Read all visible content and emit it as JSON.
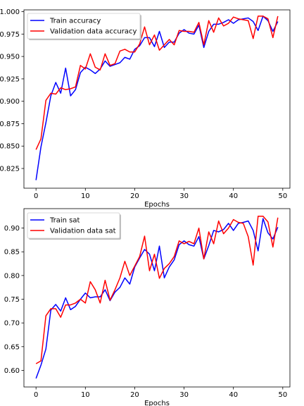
{
  "chart_data": [
    {
      "type": "line",
      "title": "",
      "xlabel": "Epochs",
      "ylabel": "",
      "xlim": [
        -2.45,
        51.45
      ],
      "ylim": [
        0.803,
        1.002
      ],
      "xticks": [
        0,
        10,
        20,
        30,
        40,
        50
      ],
      "yticks": [
        0.825,
        0.85,
        0.875,
        0.9,
        0.925,
        0.95,
        0.975,
        1.0
      ],
      "ytick_labels": [
        "0.825",
        "0.850",
        "0.875",
        "0.900",
        "0.925",
        "0.950",
        "0.975",
        "1.000"
      ],
      "grid": false,
      "legend_position": "upper-left",
      "x": [
        0,
        1,
        2,
        3,
        4,
        5,
        6,
        7,
        8,
        9,
        10,
        11,
        12,
        13,
        14,
        15,
        16,
        17,
        18,
        19,
        20,
        21,
        22,
        23,
        24,
        25,
        26,
        27,
        28,
        29,
        30,
        31,
        32,
        33,
        34,
        35,
        36,
        37,
        38,
        39,
        40,
        41,
        42,
        43,
        44,
        45,
        46,
        47,
        48,
        49
      ],
      "series": [
        {
          "name": "Train accuracy",
          "color": "#0000ff",
          "values": [
            0.812,
            0.849,
            0.876,
            0.906,
            0.921,
            0.909,
            0.937,
            0.906,
            0.913,
            0.932,
            0.938,
            0.935,
            0.931,
            0.936,
            0.945,
            0.939,
            0.941,
            0.943,
            0.949,
            0.947,
            0.958,
            0.962,
            0.971,
            0.971,
            0.961,
            0.978,
            0.96,
            0.966,
            0.966,
            0.976,
            0.98,
            0.976,
            0.975,
            0.985,
            0.96,
            0.978,
            0.986,
            0.986,
            0.988,
            0.991,
            0.987,
            0.991,
            0.992,
            0.993,
            0.989,
            0.979,
            0.995,
            0.99,
            0.978,
            0.989
          ]
        },
        {
          "name": "Validation data accuracy",
          "color": "#ff0000",
          "values": [
            0.846,
            0.858,
            0.901,
            0.909,
            0.908,
            0.915,
            0.913,
            0.914,
            0.916,
            0.94,
            0.936,
            0.953,
            0.938,
            0.935,
            0.953,
            0.94,
            0.942,
            0.956,
            0.958,
            0.955,
            0.955,
            0.964,
            0.983,
            0.963,
            0.974,
            0.957,
            0.963,
            0.969,
            0.963,
            0.979,
            0.978,
            0.978,
            0.977,
            0.988,
            0.963,
            0.99,
            0.977,
            0.993,
            0.984,
            0.987,
            0.994,
            0.992,
            0.991,
            0.99,
            0.97,
            0.995,
            0.995,
            0.992,
            0.971,
            0.995
          ]
        }
      ]
    },
    {
      "type": "line",
      "title": "",
      "xlabel": "Epochs",
      "ylabel": "",
      "xlim": [
        -2.45,
        51.45
      ],
      "ylim": [
        0.565,
        0.941
      ],
      "xticks": [
        0,
        10,
        20,
        30,
        40,
        50
      ],
      "yticks": [
        0.6,
        0.65,
        0.7,
        0.75,
        0.8,
        0.85,
        0.9
      ],
      "ytick_labels": [
        "0.60",
        "0.65",
        "0.70",
        "0.75",
        "0.80",
        "0.85",
        "0.90"
      ],
      "grid": false,
      "legend_position": "upper-left",
      "x": [
        0,
        1,
        2,
        3,
        4,
        5,
        6,
        7,
        8,
        9,
        10,
        11,
        12,
        13,
        14,
        15,
        16,
        17,
        18,
        19,
        20,
        21,
        22,
        23,
        24,
        25,
        26,
        27,
        28,
        29,
        30,
        31,
        32,
        33,
        34,
        35,
        36,
        37,
        38,
        39,
        40,
        41,
        42,
        43,
        44,
        45,
        46,
        47,
        48,
        49
      ],
      "series": [
        {
          "name": "Train sat",
          "color": "#0000ff",
          "values": [
            0.583,
            0.611,
            0.645,
            0.727,
            0.739,
            0.725,
            0.753,
            0.728,
            0.735,
            0.75,
            0.763,
            0.753,
            0.755,
            0.755,
            0.77,
            0.747,
            0.765,
            0.775,
            0.795,
            0.782,
            0.818,
            0.837,
            0.855,
            0.845,
            0.81,
            0.862,
            0.795,
            0.818,
            0.833,
            0.865,
            0.873,
            0.865,
            0.862,
            0.882,
            0.835,
            0.863,
            0.895,
            0.892,
            0.897,
            0.91,
            0.895,
            0.91,
            0.912,
            0.915,
            0.895,
            0.852,
            0.92,
            0.89,
            0.877,
            0.902
          ]
        },
        {
          "name": "Validation data sat",
          "color": "#ff0000",
          "values": [
            0.614,
            0.62,
            0.715,
            0.73,
            0.73,
            0.712,
            0.738,
            0.738,
            0.742,
            0.75,
            0.742,
            0.787,
            0.77,
            0.742,
            0.79,
            0.748,
            0.77,
            0.795,
            0.83,
            0.8,
            0.82,
            0.84,
            0.883,
            0.81,
            0.845,
            0.794,
            0.815,
            0.825,
            0.84,
            0.873,
            0.867,
            0.872,
            0.867,
            0.9,
            0.835,
            0.892,
            0.867,
            0.915,
            0.888,
            0.9,
            0.918,
            0.912,
            0.91,
            0.882,
            0.822,
            0.925,
            0.925,
            0.913,
            0.86,
            0.922
          ]
        }
      ]
    }
  ]
}
